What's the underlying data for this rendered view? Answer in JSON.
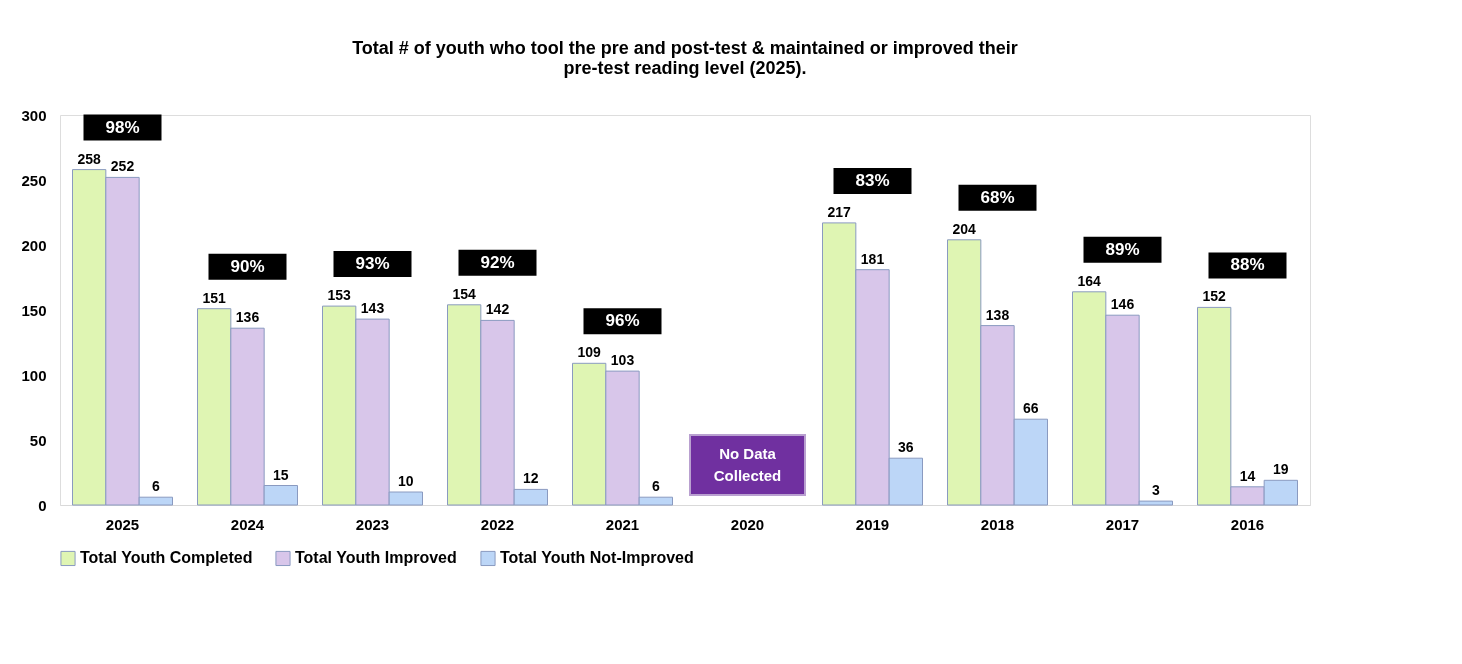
{
  "chart_data": {
    "type": "bar",
    "title": [
      "Total # of youth who tool the pre and post-test & maintained or improved their",
      "pre-test reading level (2025)."
    ],
    "categories": [
      "2025",
      "2024",
      "2023",
      "2022",
      "2021",
      "2020",
      "2019",
      "2018",
      "2017",
      "2016"
    ],
    "series": [
      {
        "name": "Total Youth Completed",
        "color": "#dff5b3",
        "values": [
          258,
          151,
          153,
          154,
          109,
          null,
          217,
          204,
          164,
          152
        ]
      },
      {
        "name": "Total Youth Improved",
        "color": "#d8c6ea",
        "values": [
          252,
          136,
          143,
          142,
          103,
          null,
          181,
          138,
          146,
          14
        ]
      },
      {
        "name": "Total Youth Not-Improved",
        "color": "#bcd6f7",
        "values": [
          6,
          15,
          10,
          12,
          6,
          null,
          36,
          66,
          3,
          19
        ]
      }
    ],
    "ylim": [
      0,
      300
    ],
    "yticks": [
      0,
      50,
      100,
      150,
      200,
      250,
      300
    ],
    "grid": false,
    "legend": "bottom",
    "data_labels": true,
    "annotations": [
      "98%",
      "90%",
      "93%",
      "92%",
      "96%",
      "No Data Collected",
      "83%",
      "68%",
      "89%",
      "88%"
    ]
  }
}
